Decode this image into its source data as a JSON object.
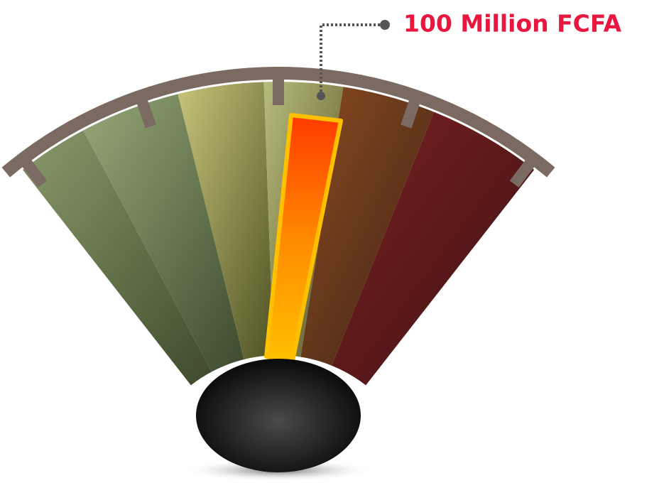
{
  "annotation": {
    "label": "100 Million FCFA"
  }
}
